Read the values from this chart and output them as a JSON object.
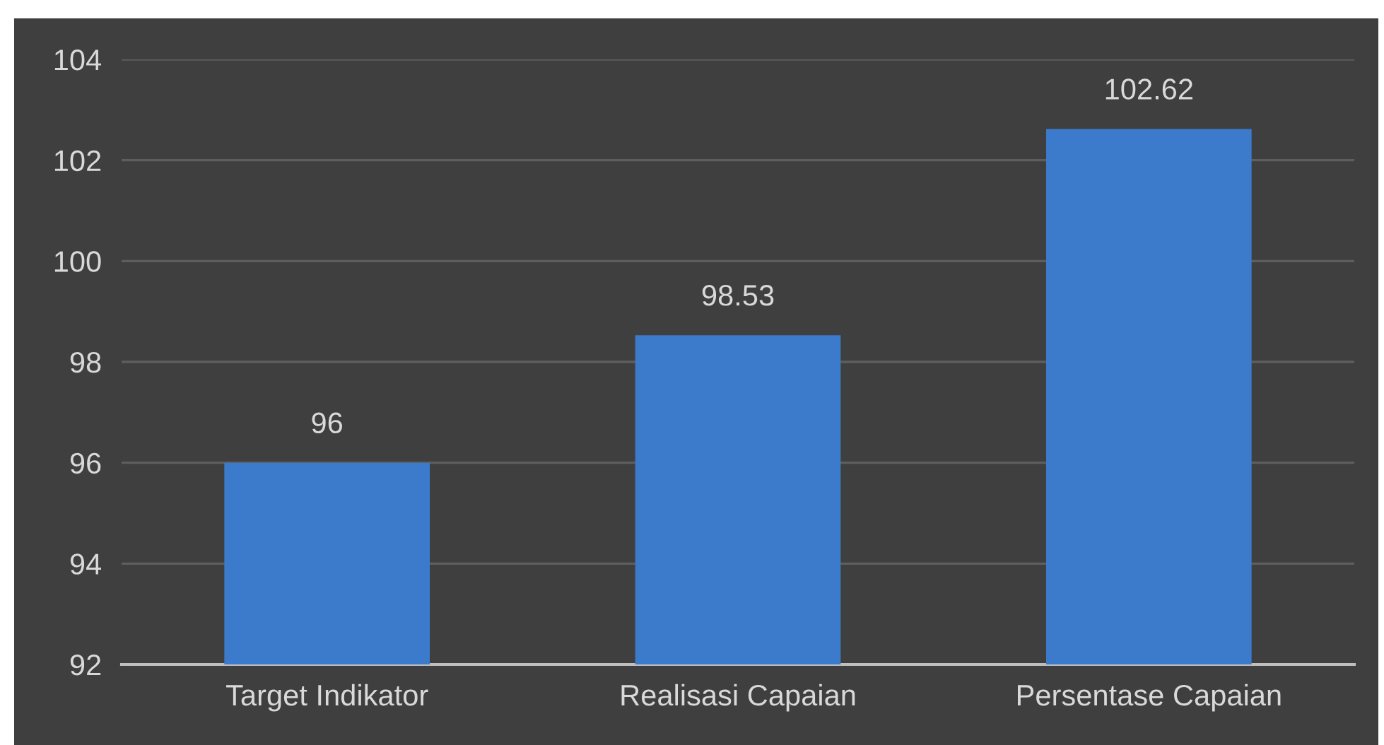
{
  "chart_data": {
    "type": "bar",
    "categories": [
      "Target Indikator",
      "Realisasi Capaian",
      "Persentase Capaian"
    ],
    "values": [
      96,
      98.53,
      102.62
    ],
    "color": "#3c7acb",
    "ylim": [
      92,
      104
    ],
    "yticks": [
      92,
      94,
      96,
      98,
      100,
      102,
      104
    ],
    "grid": "y",
    "data_labels": true
  }
}
